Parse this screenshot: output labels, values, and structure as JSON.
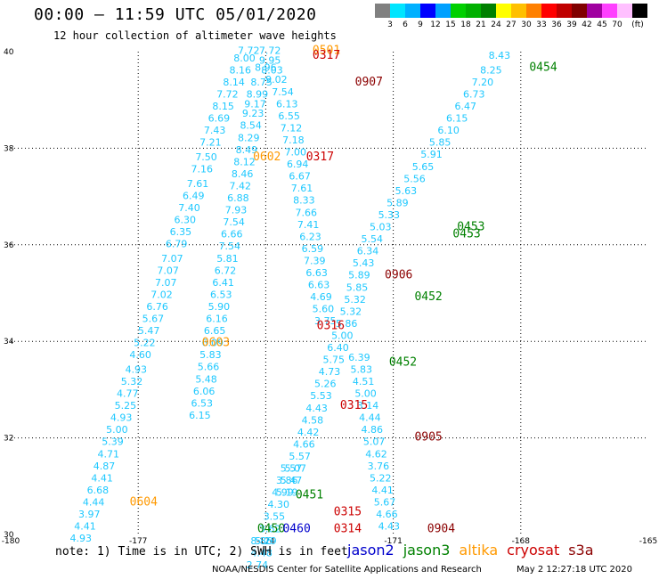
{
  "header": {
    "title": "00:00 – 11:59 UTC 05/01/2020",
    "subtitle": "12 hour collection of altimeter wave heights"
  },
  "colorbar": {
    "colors": [
      "#808080",
      "#00e5ff",
      "#00b0ff",
      "#0000ff",
      "#00a0ff",
      "#00d000",
      "#00b000",
      "#008000",
      "#ffff00",
      "#ffc000",
      "#ff8000",
      "#ff0000",
      "#c00000",
      "#800000",
      "#a000a0",
      "#ff40ff",
      "#ffc0ff",
      "#000000"
    ],
    "labels": [
      "3",
      "6",
      "9",
      "12",
      "15",
      "18",
      "21",
      "24",
      "27",
      "30",
      "33",
      "36",
      "39",
      "42",
      "45",
      "70",
      "(ft)"
    ]
  },
  "footer": {
    "note": "note: 1) Time is in UTC; 2) SWH is in feet",
    "credit": "NOAA/NESDIS Center for Satellite Applications and Research",
    "timestamp": "May  2 12:27:18 UTC 2020",
    "legend": [
      {
        "name": "jason2",
        "color": "#0000cc"
      },
      {
        "name": "jason3",
        "color": "#008000"
      },
      {
        "name": "altika",
        "color": "#ff9900"
      },
      {
        "name": "cryosat",
        "color": "#cc0000"
      },
      {
        "name": "s3a",
        "color": "#8b0000"
      }
    ]
  },
  "chart_data": {
    "type": "scatter",
    "xlim": [
      -180,
      -165
    ],
    "ylim": [
      30,
      40
    ],
    "xticks": [
      "-180",
      "-177",
      "-174",
      "-171",
      "-168",
      "-165"
    ],
    "yticks": [
      "30",
      "32",
      "34",
      "36",
      "38",
      "40"
    ],
    "grid": true,
    "tracks": [
      {
        "satellite": "altika",
        "color": "#1ec8ff",
        "points": [
          [
            -174.4,
            39.95,
            "7.72"
          ],
          [
            -174.5,
            39.8,
            "8.00"
          ],
          [
            -174.6,
            39.55,
            "8.16"
          ],
          [
            -174.75,
            39.3,
            "8.14"
          ],
          [
            -174.9,
            39.05,
            "7.72"
          ],
          [
            -175.0,
            38.8,
            "8.15"
          ],
          [
            -175.1,
            38.55,
            "6.69"
          ],
          [
            -175.2,
            38.3,
            "7.43"
          ],
          [
            -175.3,
            38.05,
            "7.21"
          ],
          [
            -175.4,
            37.75,
            "7.50"
          ],
          [
            -175.5,
            37.5,
            "7.16"
          ],
          [
            -175.6,
            37.2,
            "7.61"
          ],
          [
            -175.7,
            36.95,
            "6.49"
          ],
          [
            -175.8,
            36.7,
            "7.40"
          ],
          [
            -175.9,
            36.45,
            "6.30"
          ],
          [
            -176.0,
            36.2,
            "6.35"
          ],
          [
            -176.1,
            35.95,
            "6.79"
          ],
          [
            -176.2,
            35.65,
            "7.07"
          ],
          [
            -176.3,
            35.4,
            "7.07"
          ],
          [
            -176.35,
            35.15,
            "7.07"
          ],
          [
            -176.45,
            34.9,
            "7.02"
          ],
          [
            -176.55,
            34.65,
            "6.76"
          ],
          [
            -176.65,
            34.4,
            "5.67"
          ],
          [
            -176.75,
            34.15,
            "5.47"
          ],
          [
            -176.85,
            33.9,
            "5.22"
          ],
          [
            -176.95,
            33.65,
            "4.60"
          ],
          [
            -177.05,
            33.35,
            "4.93"
          ],
          [
            -177.15,
            33.1,
            "5.32"
          ],
          [
            -177.25,
            32.85,
            "4.77"
          ],
          [
            -177.3,
            32.6,
            "5.25"
          ],
          [
            -177.4,
            32.35,
            "4.93"
          ],
          [
            -177.5,
            32.1,
            "5.00"
          ],
          [
            -177.6,
            31.85,
            "5.39"
          ],
          [
            -177.7,
            31.6,
            "4.71"
          ],
          [
            -177.8,
            31.35,
            "4.87"
          ],
          [
            -177.85,
            31.1,
            "4.41"
          ],
          [
            -177.95,
            30.85,
            "6.68"
          ],
          [
            -178.05,
            30.6,
            "4.44"
          ],
          [
            -178.15,
            30.35,
            "3.97"
          ],
          [
            -178.25,
            30.1,
            "4.41"
          ],
          [
            -178.35,
            29.85,
            "4.93"
          ]
        ]
      },
      {
        "satellite": "jason2",
        "color": "#1ec8ff",
        "points": [
          [
            -173.9,
            39.95,
            "7.72"
          ],
          [
            -173.9,
            39.75,
            "9.95"
          ],
          [
            -173.85,
            39.55,
            "8.03"
          ],
          [
            -173.75,
            39.35,
            "9.02"
          ],
          [
            -173.6,
            39.1,
            "7.54"
          ],
          [
            -173.5,
            38.85,
            "6.13"
          ],
          [
            -173.45,
            38.6,
            "6.55"
          ],
          [
            -173.4,
            38.35,
            "7.12"
          ],
          [
            -173.35,
            38.1,
            "7.18"
          ],
          [
            -173.3,
            37.85,
            "7.00"
          ],
          [
            -173.25,
            37.6,
            "6.94"
          ],
          [
            -173.2,
            37.35,
            "6.67"
          ],
          [
            -173.15,
            37.1,
            "7.61"
          ],
          [
            -173.1,
            36.85,
            "8.33"
          ],
          [
            -173.05,
            36.6,
            "7.66"
          ],
          [
            -173.0,
            36.35,
            "7.41"
          ],
          [
            -172.95,
            36.1,
            "6.23"
          ],
          [
            -172.9,
            35.85,
            "6.59"
          ],
          [
            -172.85,
            35.6,
            "7.39"
          ],
          [
            -172.8,
            35.35,
            "6.63"
          ],
          [
            -172.75,
            35.1,
            "6.63"
          ],
          [
            -172.7,
            34.85,
            "4.69"
          ],
          [
            -172.65,
            34.6,
            "5.60"
          ],
          [
            -172.6,
            34.35,
            "3.75"
          ]
        ]
      },
      {
        "satellite": "jason2b",
        "color": "#1ec8ff",
        "points": [
          [
            -174.0,
            39.6,
            "8.96"
          ],
          [
            -174.1,
            39.3,
            "8.75"
          ],
          [
            -174.2,
            39.05,
            "8.99"
          ],
          [
            -174.25,
            38.85,
            "9.17"
          ],
          [
            -174.3,
            38.65,
            "9.23"
          ],
          [
            -174.35,
            38.4,
            "8.54"
          ],
          [
            -174.4,
            38.15,
            "8.29"
          ],
          [
            -174.45,
            37.9,
            "8.49"
          ],
          [
            -174.5,
            37.65,
            "8.12"
          ],
          [
            -174.55,
            37.4,
            "8.46"
          ],
          [
            -174.6,
            37.15,
            "7.42"
          ],
          [
            -174.65,
            36.9,
            "6.88"
          ],
          [
            -174.7,
            36.65,
            "7.93"
          ],
          [
            -174.75,
            36.4,
            "7.54"
          ],
          [
            -174.8,
            36.15,
            "6.66"
          ],
          [
            -174.85,
            35.9,
            "7.54"
          ],
          [
            -174.9,
            35.65,
            "5.81"
          ],
          [
            -174.95,
            35.4,
            "6.72"
          ],
          [
            -175.0,
            35.15,
            "6.41"
          ],
          [
            -175.05,
            34.9,
            "6.53"
          ],
          [
            -175.1,
            34.65,
            "5.90"
          ],
          [
            -175.15,
            34.4,
            "6.16"
          ],
          [
            -175.2,
            34.15,
            "6.65"
          ],
          [
            -175.25,
            33.9,
            "6.09"
          ],
          [
            -175.3,
            33.65,
            "5.83"
          ],
          [
            -175.35,
            33.4,
            "5.66"
          ],
          [
            -175.4,
            33.15,
            "5.48"
          ],
          [
            -175.45,
            32.9,
            "6.06"
          ],
          [
            -175.5,
            32.65,
            "6.53"
          ],
          [
            -175.55,
            32.4,
            "6.15"
          ]
        ]
      },
      {
        "satellite": "jason3",
        "color": "#1ec8ff",
        "points": [
          [
            -168.5,
            39.85,
            "8.43"
          ],
          [
            -168.7,
            39.55,
            "8.25"
          ],
          [
            -168.9,
            39.3,
            "7.20"
          ],
          [
            -169.1,
            39.05,
            "6.73"
          ],
          [
            -169.3,
            38.8,
            "6.47"
          ],
          [
            -169.5,
            38.55,
            "6.15"
          ],
          [
            -169.7,
            38.3,
            "6.10"
          ],
          [
            -169.9,
            38.05,
            "5.85"
          ],
          [
            -170.1,
            37.8,
            "5.91"
          ],
          [
            -170.3,
            37.55,
            "5.65"
          ],
          [
            -170.5,
            37.3,
            "5.56"
          ],
          [
            -170.7,
            37.05,
            "5.63"
          ],
          [
            -170.9,
            36.8,
            "5.89"
          ],
          [
            -171.1,
            36.55,
            "5.33"
          ],
          [
            -171.3,
            36.3,
            "5.03"
          ],
          [
            -171.5,
            36.05,
            "5.54"
          ],
          [
            -171.6,
            35.8,
            "6.34"
          ],
          [
            -171.7,
            35.55,
            "5.43"
          ],
          [
            -171.8,
            35.3,
            "5.89"
          ],
          [
            -171.85,
            35.05,
            "5.85"
          ],
          [
            -171.9,
            34.8,
            "5.32"
          ],
          [
            -172.0,
            34.55,
            "5.32"
          ],
          [
            -172.1,
            34.3,
            "5.86"
          ],
          [
            -172.2,
            34.05,
            "5.00"
          ],
          [
            -172.3,
            33.8,
            "6.40"
          ],
          [
            -172.4,
            33.55,
            "5.75"
          ],
          [
            -172.5,
            33.3,
            "4.73"
          ],
          [
            -172.6,
            33.05,
            "5.26"
          ],
          [
            -172.7,
            32.8,
            "5.53"
          ],
          [
            -172.8,
            32.55,
            "4.43"
          ],
          [
            -172.9,
            32.3,
            "4.58"
          ],
          [
            -173.0,
            32.05,
            "4.42"
          ],
          [
            -173.1,
            31.8,
            "4.66"
          ],
          [
            -173.2,
            31.55,
            "5.57"
          ],
          [
            -173.3,
            31.3,
            "5.07"
          ],
          [
            -173.4,
            31.05,
            "5.47"
          ],
          [
            -173.5,
            30.8,
            "5.19"
          ]
        ]
      },
      {
        "satellite": "cryosat",
        "color": "#1ec8ff",
        "points": [
          [
            -171.8,
            33.6,
            "6.39"
          ],
          [
            -171.75,
            33.35,
            "5.83"
          ],
          [
            -171.7,
            33.1,
            "4.51"
          ],
          [
            -171.65,
            32.85,
            "5.00"
          ],
          [
            -171.6,
            32.6,
            "3.14"
          ],
          [
            -171.55,
            32.35,
            "4.44"
          ],
          [
            -171.5,
            32.1,
            "4.86"
          ],
          [
            -171.45,
            31.85,
            "5.07"
          ],
          [
            -171.4,
            31.6,
            "4.62"
          ],
          [
            -171.35,
            31.35,
            "3.76"
          ],
          [
            -171.3,
            31.1,
            "5.22"
          ],
          [
            -171.25,
            30.85,
            "4.41"
          ],
          [
            -171.2,
            30.6,
            "5.67"
          ],
          [
            -171.15,
            30.35,
            "4.66"
          ],
          [
            -171.1,
            30.1,
            "4.43"
          ]
        ]
      },
      {
        "satellite": "jason2c",
        "color": "#1ec8ff",
        "points": [
          [
            -173.4,
            31.3,
            "5.57"
          ],
          [
            -173.5,
            31.05,
            "3.86"
          ],
          [
            -173.6,
            30.8,
            "4.99"
          ],
          [
            -173.7,
            30.55,
            "4.30"
          ],
          [
            -173.8,
            30.3,
            "3.55"
          ],
          [
            -173.9,
            30.05,
            "3.62"
          ],
          [
            -174.0,
            29.8,
            "5.29"
          ],
          [
            -174.1,
            29.55,
            "4.48"
          ],
          [
            -174.2,
            29.3,
            "2.74"
          ],
          [
            -174.1,
            29.8,
            "8.86"
          ]
        ]
      }
    ],
    "time_labels": [
      {
        "text": "0501",
        "color": "#ff9900",
        "x": -172.9,
        "y": 39.95
      },
      {
        "text": "0317",
        "color": "#cc0000",
        "x": -172.9,
        "y": 39.85
      },
      {
        "text": "0907",
        "color": "#8b0000",
        "x": -171.9,
        "y": 39.3
      },
      {
        "text": "0454",
        "color": "#008000",
        "x": -167.8,
        "y": 39.6
      },
      {
        "text": "0602",
        "color": "#ff9900",
        "x": -174.3,
        "y": 37.75
      },
      {
        "text": "0317",
        "color": "#cc0000",
        "x": -173.05,
        "y": 37.75
      },
      {
        "text": "0453",
        "color": "#008000",
        "x": -169.5,
        "y": 36.3
      },
      {
        "text": "0453",
        "color": "#008000",
        "x": -169.6,
        "y": 36.15
      },
      {
        "text": "0906",
        "color": "#8b0000",
        "x": -171.2,
        "y": 35.3
      },
      {
        "text": "0452",
        "color": "#008000",
        "x": -170.5,
        "y": 34.85
      },
      {
        "text": "0603",
        "color": "#ff9900",
        "x": -175.5,
        "y": 33.9
      },
      {
        "text": "0316",
        "color": "#cc0000",
        "x": -172.8,
        "y": 34.25
      },
      {
        "text": "0452",
        "color": "#008000",
        "x": -171.1,
        "y": 33.5
      },
      {
        "text": "0315",
        "color": "#cc0000",
        "x": -172.25,
        "y": 32.6
      },
      {
        "text": "0905",
        "color": "#8b0000",
        "x": -170.5,
        "y": 31.95
      },
      {
        "text": "0451",
        "color": "#008000",
        "x": -173.3,
        "y": 30.75
      },
      {
        "text": "0604",
        "color": "#ff9900",
        "x": -177.2,
        "y": 30.6
      },
      {
        "text": "0315",
        "color": "#cc0000",
        "x": -172.4,
        "y": 30.4
      },
      {
        "text": "0314",
        "color": "#cc0000",
        "x": -172.4,
        "y": 30.05
      },
      {
        "text": "0904",
        "color": "#8b0000",
        "x": -170.2,
        "y": 30.05
      },
      {
        "text": "0450",
        "color": "#008000",
        "x": -174.2,
        "y": 30.05
      },
      {
        "text": "0460",
        "color": "#0000cc",
        "x": -173.6,
        "y": 30.05
      }
    ]
  }
}
